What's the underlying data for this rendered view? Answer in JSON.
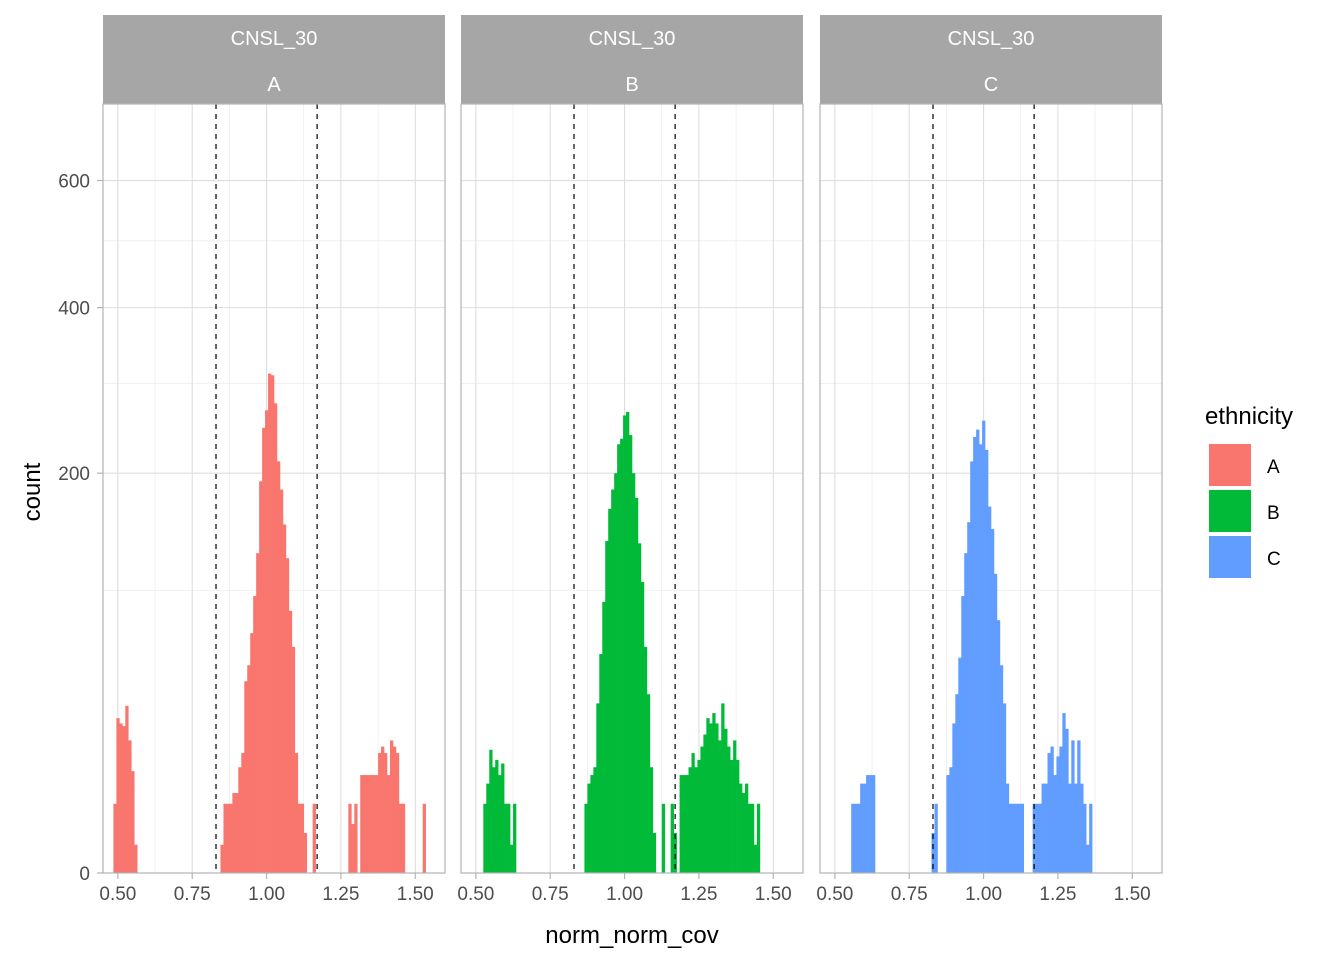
{
  "chart_data": {
    "type": "bar",
    "xlabel": "norm_norm_cov",
    "ylabel": "count",
    "y_scale": "sqrt",
    "xlim": [
      0.45,
      1.6
    ],
    "ylim": [
      0,
      740
    ],
    "x_ticks": [
      0.5,
      0.75,
      1.0,
      1.25,
      1.5
    ],
    "x_tick_labels": [
      "0.50",
      "0.75",
      "1.00",
      "1.25",
      "1.50"
    ],
    "y_ticks": [
      0,
      200,
      400,
      600
    ],
    "y_tick_labels": [
      "0",
      "200",
      "400",
      "600"
    ],
    "reference_lines": [
      0.83,
      1.17
    ],
    "grid": true,
    "legend_position": "right",
    "bin_width": 0.01,
    "legend": {
      "title": "ethnicity",
      "items": [
        {
          "label": "A",
          "color": "#F8766D"
        },
        {
          "label": "B",
          "color": "#00BA38"
        },
        {
          "label": "C",
          "color": "#619CFF"
        }
      ]
    },
    "panels": [
      {
        "strip_top": "CNSL_30",
        "strip_bottom": "A",
        "color": "#F8766D",
        "bins": [
          [
            0.49,
            6
          ],
          [
            0.5,
            30
          ],
          [
            0.51,
            28
          ],
          [
            0.52,
            27
          ],
          [
            0.53,
            35
          ],
          [
            0.54,
            22
          ],
          [
            0.55,
            13
          ],
          [
            0.56,
            1
          ],
          [
            0.85,
            1
          ],
          [
            0.86,
            6
          ],
          [
            0.87,
            6
          ],
          [
            0.88,
            6
          ],
          [
            0.89,
            8
          ],
          [
            0.9,
            8
          ],
          [
            0.91,
            14
          ],
          [
            0.92,
            18
          ],
          [
            0.93,
            46
          ],
          [
            0.94,
            54
          ],
          [
            0.95,
            72
          ],
          [
            0.96,
            96
          ],
          [
            0.97,
            128
          ],
          [
            0.98,
            192
          ],
          [
            0.99,
            248
          ],
          [
            1.0,
            268
          ],
          [
            1.01,
            312
          ],
          [
            1.02,
            310
          ],
          [
            1.03,
            276
          ],
          [
            1.04,
            212
          ],
          [
            1.05,
            184
          ],
          [
            1.06,
            152
          ],
          [
            1.07,
            124
          ],
          [
            1.08,
            86
          ],
          [
            1.09,
            64
          ],
          [
            1.1,
            18
          ],
          [
            1.11,
            6
          ],
          [
            1.12,
            6
          ],
          [
            1.13,
            2
          ],
          [
            1.16,
            6
          ],
          [
            1.17,
            0
          ],
          [
            1.18,
            0
          ],
          [
            1.19,
            0
          ],
          [
            1.2,
            0
          ],
          [
            1.28,
            6
          ],
          [
            1.29,
            3
          ],
          [
            1.3,
            6
          ],
          [
            1.31,
            0
          ],
          [
            1.32,
            12
          ],
          [
            1.33,
            12
          ],
          [
            1.34,
            12
          ],
          [
            1.35,
            12
          ],
          [
            1.36,
            12
          ],
          [
            1.37,
            12
          ],
          [
            1.38,
            18
          ],
          [
            1.39,
            20
          ],
          [
            1.4,
            18
          ],
          [
            1.41,
            12
          ],
          [
            1.42,
            22
          ],
          [
            1.43,
            20
          ],
          [
            1.44,
            18
          ],
          [
            1.45,
            6
          ],
          [
            1.46,
            6
          ],
          [
            1.47,
            0
          ],
          [
            1.48,
            0
          ],
          [
            1.49,
            0
          ],
          [
            1.5,
            0
          ],
          [
            1.51,
            0
          ],
          [
            1.52,
            0
          ],
          [
            1.53,
            6
          ]
        ]
      },
      {
        "strip_top": "CNSL_30",
        "strip_bottom": "B",
        "color": "#00BA38",
        "bins": [
          [
            0.53,
            6
          ],
          [
            0.54,
            10
          ],
          [
            0.55,
            19
          ],
          [
            0.56,
            14
          ],
          [
            0.57,
            16
          ],
          [
            0.58,
            12
          ],
          [
            0.59,
            15
          ],
          [
            0.6,
            6
          ],
          [
            0.61,
            6
          ],
          [
            0.62,
            1
          ],
          [
            0.63,
            6
          ],
          [
            0.87,
            6
          ],
          [
            0.88,
            10
          ],
          [
            0.89,
            12
          ],
          [
            0.9,
            14
          ],
          [
            0.91,
            36
          ],
          [
            0.92,
            60
          ],
          [
            0.93,
            92
          ],
          [
            0.94,
            138
          ],
          [
            0.95,
            166
          ],
          [
            0.96,
            184
          ],
          [
            0.97,
            200
          ],
          [
            0.98,
            230
          ],
          [
            0.99,
            236
          ],
          [
            1.0,
            262
          ],
          [
            1.01,
            266
          ],
          [
            1.02,
            240
          ],
          [
            1.03,
            200
          ],
          [
            1.04,
            176
          ],
          [
            1.05,
            136
          ],
          [
            1.06,
            106
          ],
          [
            1.07,
            64
          ],
          [
            1.08,
            40
          ],
          [
            1.09,
            14
          ],
          [
            1.1,
            2
          ],
          [
            1.11,
            0
          ],
          [
            1.12,
            0
          ],
          [
            1.13,
            6
          ],
          [
            1.16,
            6
          ],
          [
            1.17,
            2
          ],
          [
            1.18,
            0
          ],
          [
            1.19,
            12
          ],
          [
            1.2,
            12
          ],
          [
            1.21,
            12
          ],
          [
            1.22,
            14
          ],
          [
            1.23,
            18
          ],
          [
            1.24,
            14
          ],
          [
            1.25,
            16
          ],
          [
            1.26,
            20
          ],
          [
            1.27,
            24
          ],
          [
            1.28,
            30
          ],
          [
            1.29,
            28
          ],
          [
            1.3,
            32
          ],
          [
            1.31,
            28
          ],
          [
            1.32,
            22
          ],
          [
            1.33,
            36
          ],
          [
            1.34,
            26
          ],
          [
            1.35,
            20
          ],
          [
            1.36,
            16
          ],
          [
            1.37,
            22
          ],
          [
            1.38,
            16
          ],
          [
            1.39,
            10
          ],
          [
            1.4,
            8
          ],
          [
            1.41,
            10
          ],
          [
            1.42,
            6
          ],
          [
            1.43,
            6
          ],
          [
            1.44,
            1
          ],
          [
            1.45,
            6
          ]
        ]
      },
      {
        "strip_top": "CNSL_30",
        "strip_bottom": "C",
        "color": "#619CFF",
        "bins": [
          [
            0.56,
            6
          ],
          [
            0.57,
            6
          ],
          [
            0.58,
            6
          ],
          [
            0.59,
            10
          ],
          [
            0.6,
            10
          ],
          [
            0.61,
            12
          ],
          [
            0.62,
            12
          ],
          [
            0.63,
            12
          ],
          [
            0.83,
            2
          ],
          [
            0.84,
            6
          ],
          [
            0.85,
            0
          ],
          [
            0.86,
            0
          ],
          [
            0.87,
            0
          ],
          [
            0.88,
            12
          ],
          [
            0.89,
            14
          ],
          [
            0.9,
            28
          ],
          [
            0.91,
            40
          ],
          [
            0.92,
            58
          ],
          [
            0.93,
            96
          ],
          [
            0.94,
            128
          ],
          [
            0.95,
            154
          ],
          [
            0.96,
            212
          ],
          [
            0.97,
            238
          ],
          [
            0.98,
            246
          ],
          [
            0.99,
            230
          ],
          [
            1.0,
            256
          ],
          [
            1.01,
            224
          ],
          [
            1.02,
            168
          ],
          [
            1.03,
            148
          ],
          [
            1.04,
            112
          ],
          [
            1.05,
            80
          ],
          [
            1.06,
            54
          ],
          [
            1.07,
            36
          ],
          [
            1.08,
            10
          ],
          [
            1.09,
            6
          ],
          [
            1.1,
            6
          ],
          [
            1.11,
            6
          ],
          [
            1.12,
            6
          ],
          [
            1.13,
            6
          ],
          [
            1.17,
            6
          ],
          [
            1.18,
            6
          ],
          [
            1.19,
            6
          ],
          [
            1.2,
            10
          ],
          [
            1.21,
            10
          ],
          [
            1.22,
            18
          ],
          [
            1.23,
            20
          ],
          [
            1.24,
            12
          ],
          [
            1.25,
            17
          ],
          [
            1.26,
            20
          ],
          [
            1.27,
            32
          ],
          [
            1.28,
            26
          ],
          [
            1.29,
            10
          ],
          [
            1.3,
            22
          ],
          [
            1.31,
            10
          ],
          [
            1.32,
            22
          ],
          [
            1.33,
            10
          ],
          [
            1.34,
            6
          ],
          [
            1.35,
            1
          ],
          [
            1.36,
            6
          ]
        ]
      }
    ]
  }
}
